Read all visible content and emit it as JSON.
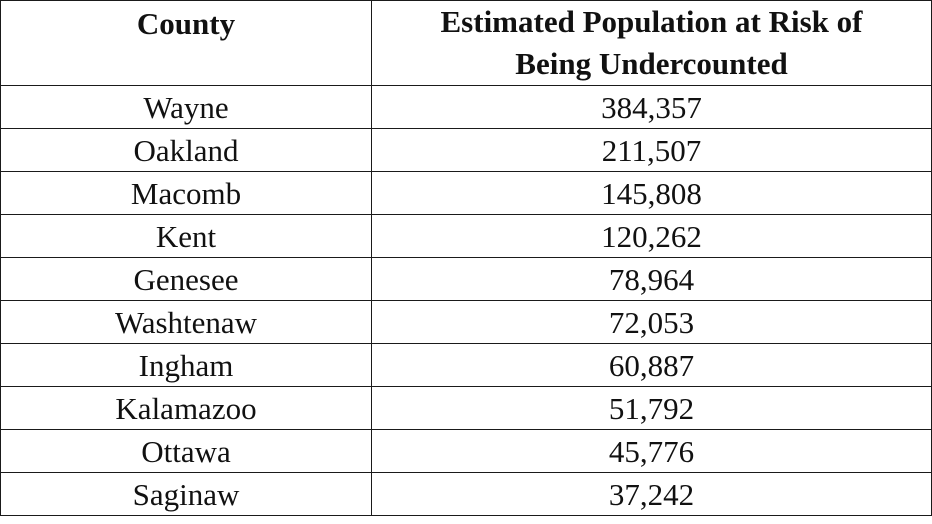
{
  "table": {
    "headers": {
      "county": "County",
      "population_line1": "Estimated Population at Risk of",
      "population_line2": "Being Undercounted"
    },
    "rows": [
      {
        "county": "Wayne",
        "population": "384,357"
      },
      {
        "county": "Oakland",
        "population": "211,507"
      },
      {
        "county": "Macomb",
        "population": "145,808"
      },
      {
        "county": "Kent",
        "population": "120,262"
      },
      {
        "county": "Genesee",
        "population": "78,964"
      },
      {
        "county": "Washtenaw",
        "population": "72,053"
      },
      {
        "county": "Ingham",
        "population": "60,887"
      },
      {
        "county": "Kalamazoo",
        "population": "51,792"
      },
      {
        "county": "Ottawa",
        "population": "45,776"
      },
      {
        "county": "Saginaw",
        "population": "37,242"
      }
    ]
  }
}
